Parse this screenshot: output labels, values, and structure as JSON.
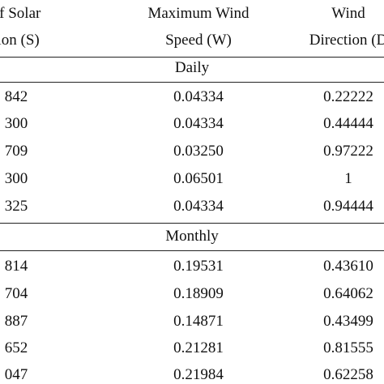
{
  "header": {
    "col1_line1": "of Solar",
    "col1_line2": "tion (S)",
    "col2_line1": "Maximum Wind",
    "col2_line2": "Speed (W)",
    "col3_line1": "Wind",
    "col3_line2": "Direction (D"
  },
  "daily": {
    "label": "Daily",
    "rows": [
      {
        "s": "842",
        "w": "0.04334",
        "d": "0.22222"
      },
      {
        "s": "300",
        "w": "0.04334",
        "d": "0.44444"
      },
      {
        "s": "709",
        "w": "0.03250",
        "d": "0.97222"
      },
      {
        "s": "300",
        "w": "0.06501",
        "d": "1"
      },
      {
        "s": "325",
        "w": "0.04334",
        "d": "0.94444"
      }
    ]
  },
  "monthly": {
    "label": "Monthly",
    "rows": [
      {
        "s": "814",
        "w": "0.19531",
        "d": "0.43610"
      },
      {
        "s": "704",
        "w": "0.18909",
        "d": "0.64062"
      },
      {
        "s": "887",
        "w": "0.14871",
        "d": "0.43499"
      },
      {
        "s": "652",
        "w": "0.21281",
        "d": "0.81555"
      },
      {
        "s": "047",
        "w": "0.21984",
        "d": "0.62258"
      }
    ]
  }
}
